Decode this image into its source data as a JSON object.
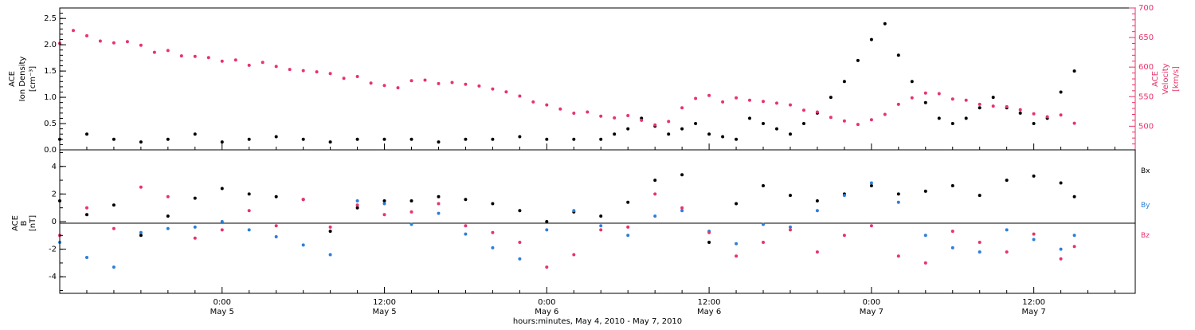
{
  "colors": {
    "black": "#000000",
    "magenta": "#e8336b",
    "blue": "#2d7fd8"
  },
  "chart_data": [
    {
      "type": "scatter",
      "ylabel_left": [
        "ACE",
        "Ion Density",
        "[cm⁻³]"
      ],
      "ylabel_right": [
        "ACE",
        "Velocity",
        "[km/s]"
      ],
      "ylim_left": [
        0,
        2.7
      ],
      "ylim_right": [
        460,
        700
      ],
      "left_ticks": [
        "0.0",
        "0.5",
        "1.0",
        "1.5",
        "2.0",
        "2.5"
      ],
      "right_ticks": [
        "500",
        "550",
        "600",
        "650",
        "700"
      ],
      "series": [
        {
          "axis": "left",
          "color": "#000000",
          "x": [
            0,
            2,
            4,
            6,
            8,
            10,
            12,
            14,
            16,
            18,
            20,
            22,
            24,
            26,
            28,
            30,
            32,
            34,
            36,
            38,
            40,
            41,
            42,
            43,
            44,
            45,
            46,
            47,
            48,
            49,
            50,
            51,
            52,
            53,
            54,
            55,
            56,
            57,
            58,
            59,
            60,
            61,
            62,
            63,
            64,
            65,
            66,
            67,
            68,
            69,
            70,
            71,
            72,
            73,
            74,
            75
          ],
          "y": [
            0.2,
            0.3,
            0.2,
            0.15,
            0.2,
            0.3,
            0.15,
            0.2,
            0.25,
            0.2,
            0.15,
            0.2,
            0.2,
            0.2,
            0.15,
            0.2,
            0.2,
            0.25,
            0.2,
            0.2,
            0.2,
            0.3,
            0.4,
            0.6,
            0.45,
            0.3,
            0.4,
            0.5,
            0.3,
            0.25,
            0.2,
            0.6,
            0.5,
            0.4,
            0.3,
            0.5,
            0.7,
            1.0,
            1.3,
            1.7,
            2.1,
            2.4,
            1.8,
            1.3,
            0.9,
            0.6,
            0.5,
            0.6,
            0.8,
            1.0,
            0.8,
            0.7,
            0.5,
            0.6,
            1.1,
            1.5
          ]
        },
        {
          "axis": "right",
          "color": "#e8336b",
          "x": [
            0,
            1,
            2,
            3,
            4,
            5,
            6,
            7,
            8,
            9,
            10,
            11,
            12,
            13,
            14,
            15,
            16,
            17,
            18,
            19,
            20,
            21,
            22,
            23,
            24,
            25,
            26,
            27,
            28,
            29,
            30,
            31,
            32,
            33,
            34,
            35,
            36,
            37,
            38,
            39,
            40,
            41,
            42,
            43,
            44,
            45,
            46,
            47,
            48,
            49,
            50,
            51,
            52,
            53,
            54,
            55,
            56,
            57,
            58,
            59,
            60,
            61,
            62,
            63,
            64,
            65,
            66,
            67,
            68,
            69,
            70,
            71,
            72,
            73,
            74,
            75
          ],
          "y": [
            640,
            662,
            653,
            644,
            641,
            643,
            637,
            625,
            628,
            619,
            618,
            616,
            610,
            612,
            603,
            608,
            601,
            596,
            594,
            592,
            589,
            581,
            584,
            573,
            569,
            565,
            577,
            578,
            572,
            574,
            571,
            568,
            563,
            558,
            551,
            541,
            536,
            529,
            522,
            524,
            517,
            514,
            518,
            510,
            502,
            508,
            531,
            547,
            552,
            541,
            548,
            544,
            542,
            539,
            536,
            527,
            524,
            515,
            509,
            503,
            511,
            520,
            537,
            548,
            556,
            555,
            546,
            544,
            537,
            534,
            533,
            528,
            521,
            516,
            519,
            505
          ]
        }
      ]
    },
    {
      "type": "scatter",
      "ylabel": [
        "ACE",
        "B",
        "[nT]"
      ],
      "ylim": [
        -5.2,
        5.2
      ],
      "ticks": [
        "-4",
        "-2",
        "0",
        "2",
        "4"
      ],
      "zero_line": true,
      "legend": [
        "Bx",
        "By",
        "Bz"
      ],
      "series": [
        {
          "name": "Bx",
          "color": "#000000",
          "x": [
            0,
            2,
            4,
            6,
            8,
            10,
            12,
            14,
            16,
            18,
            20,
            22,
            24,
            26,
            28,
            30,
            32,
            34,
            36,
            38,
            40,
            42,
            44,
            46,
            48,
            50,
            52,
            54,
            56,
            58,
            60,
            62,
            64,
            66,
            68,
            70,
            72,
            74,
            75
          ],
          "y": [
            1.5,
            0.5,
            1.2,
            -1.0,
            0.4,
            1.7,
            2.4,
            2.0,
            1.8,
            1.6,
            -0.7,
            1.0,
            1.5,
            1.5,
            1.8,
            1.6,
            1.3,
            0.8,
            0.0,
            0.7,
            0.4,
            1.4,
            3.0,
            3.4,
            -1.5,
            1.3,
            2.6,
            1.9,
            1.5,
            2.0,
            2.6,
            2.0,
            2.2,
            2.6,
            1.9,
            3.0,
            3.3,
            2.8,
            1.8
          ]
        },
        {
          "name": "By",
          "color": "#2d7fd8",
          "x": [
            0,
            2,
            4,
            6,
            8,
            10,
            12,
            14,
            16,
            18,
            20,
            22,
            24,
            26,
            28,
            30,
            32,
            34,
            36,
            38,
            40,
            42,
            44,
            46,
            48,
            50,
            52,
            54,
            56,
            58,
            60,
            62,
            64,
            66,
            68,
            70,
            72,
            74,
            75
          ],
          "y": [
            -1.5,
            -2.6,
            -3.3,
            -0.8,
            -0.5,
            -0.4,
            0.0,
            -0.6,
            -1.1,
            -1.7,
            -2.4,
            1.5,
            1.3,
            -0.2,
            0.6,
            -0.9,
            -1.9,
            -2.7,
            -0.6,
            0.8,
            -0.3,
            -1.0,
            0.4,
            0.8,
            -0.7,
            -1.6,
            -0.2,
            -0.4,
            0.8,
            1.9,
            2.8,
            1.4,
            -1.0,
            -1.9,
            -2.2,
            -0.6,
            -1.3,
            -2.0,
            -1.0
          ]
        },
        {
          "name": "Bz",
          "color": "#e8336b",
          "x": [
            0,
            2,
            4,
            6,
            8,
            10,
            12,
            14,
            16,
            18,
            20,
            22,
            24,
            26,
            28,
            30,
            32,
            34,
            36,
            38,
            40,
            42,
            44,
            46,
            48,
            50,
            52,
            54,
            56,
            58,
            60,
            62,
            64,
            66,
            68,
            70,
            72,
            74,
            75
          ],
          "y": [
            -1.0,
            1.0,
            -0.5,
            2.5,
            1.8,
            -1.2,
            -0.6,
            0.8,
            -0.3,
            1.6,
            -0.4,
            1.2,
            0.5,
            0.7,
            1.3,
            -0.3,
            -0.8,
            -1.5,
            -3.3,
            -2.4,
            -0.6,
            -0.4,
            2.0,
            1.0,
            -0.8,
            -2.5,
            -1.5,
            -0.6,
            -2.2,
            -1.0,
            -0.3,
            -2.5,
            -3.0,
            -0.7,
            -1.5,
            -2.2,
            -0.9,
            -2.7,
            -1.8
          ]
        }
      ]
    }
  ],
  "x_axis": {
    "range_hours": [
      0,
      79.5
    ],
    "tick_step_hours": 2,
    "major_ticks": [
      {
        "hour": 12,
        "time": "0:00",
        "date": "May 5"
      },
      {
        "hour": 24,
        "time": "12:00",
        "date": "May 5"
      },
      {
        "hour": 36,
        "time": "0:00",
        "date": "May 6"
      },
      {
        "hour": 48,
        "time": "12:00",
        "date": "May 6"
      },
      {
        "hour": 60,
        "time": "0:00",
        "date": "May 7"
      },
      {
        "hour": 72,
        "time": "12:00",
        "date": "May 7"
      }
    ],
    "label": "hours:minutes, May  4, 2010 - May  7, 2010"
  }
}
